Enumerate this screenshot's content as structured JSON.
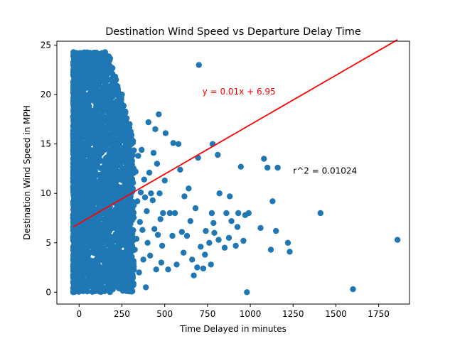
{
  "chart_data": {
    "type": "scatter",
    "title": "Destination Wind Speed vs Departure Delay Time",
    "xlabel": "Time Delayed in minutes",
    "ylabel": "Destination Wind Speed in MPH",
    "xlim": [
      -130,
      1930
    ],
    "ylim": [
      -1.2,
      25.4
    ],
    "x_ticks": [
      0,
      250,
      500,
      750,
      1000,
      1250,
      1500,
      1750
    ],
    "x_tick_labels": [
      "0",
      "250",
      "500",
      "750",
      "1000",
      "1250",
      "1500",
      "1750"
    ],
    "y_ticks": [
      0,
      5,
      10,
      15,
      20,
      25
    ],
    "y_tick_labels": [
      "0",
      "5",
      "10",
      "15",
      "20",
      "25"
    ],
    "grid": false,
    "colors": {
      "points": "#1f77b4",
      "regression": "#ff0000",
      "text": "#000000"
    },
    "regression": {
      "slope": 0.01,
      "intercept": 6.95,
      "x_range": [
        -35,
        1860
      ]
    },
    "annotations": {
      "equation": {
        "text": "y = 0.01x + 6.95",
        "x": 720,
        "y": 20,
        "color": "#ff0000"
      },
      "r_squared": {
        "text": "r^2 = 0.01024",
        "x": 1250,
        "y": 12
      }
    },
    "series": [
      {
        "points": [
          [
            1860,
            5.3
          ],
          [
            1600,
            0.3
          ],
          [
            1410,
            8.0
          ],
          [
            1230,
            4.1
          ],
          [
            1220,
            5.0
          ],
          [
            1160,
            12.6
          ],
          [
            1150,
            6.2
          ],
          [
            1130,
            9.2
          ],
          [
            1120,
            4.3
          ],
          [
            1100,
            12.6
          ],
          [
            1080,
            13.5
          ],
          [
            1060,
            6.5
          ],
          [
            990,
            8.0
          ],
          [
            980,
            0.0
          ],
          [
            970,
            7.8
          ],
          [
            960,
            5.2
          ],
          [
            945,
            12.7
          ],
          [
            930,
            8.0
          ],
          [
            925,
            6.6
          ],
          [
            915,
            4.7
          ],
          [
            890,
            7.2
          ],
          [
            880,
            9.7
          ],
          [
            875,
            5.5
          ],
          [
            860,
            8.0
          ],
          [
            850,
            4.5
          ],
          [
            820,
            10.0
          ],
          [
            815,
            5.3
          ],
          [
            810,
            13.9
          ],
          [
            790,
            6.0
          ],
          [
            785,
            7.0
          ],
          [
            780,
            15.0
          ],
          [
            775,
            8.0
          ],
          [
            770,
            2.8
          ],
          [
            760,
            5.0
          ],
          [
            740,
            6.2
          ],
          [
            735,
            3.8
          ],
          [
            725,
            2.4
          ],
          [
            710,
            4.6
          ],
          [
            700,
            23.0
          ],
          [
            695,
            13.6
          ],
          [
            690,
            2.5
          ],
          [
            680,
            8.5
          ],
          [
            670,
            1.7
          ],
          [
            660,
            3.3
          ],
          [
            650,
            7.2
          ],
          [
            640,
            10.5
          ],
          [
            630,
            5.7
          ],
          [
            615,
            9.7
          ],
          [
            610,
            4.0
          ],
          [
            600,
            6.1
          ],
          [
            590,
            12.4
          ],
          [
            580,
            15.0
          ],
          [
            570,
            2.8
          ],
          [
            560,
            8.0
          ],
          [
            550,
            15.1
          ],
          [
            545,
            5.7
          ],
          [
            530,
            8.0
          ],
          [
            520,
            2.3
          ],
          [
            505,
            16.1
          ],
          [
            500,
            11.3
          ],
          [
            490,
            8.0
          ],
          [
            485,
            4.7
          ],
          [
            480,
            3.0
          ],
          [
            475,
            7.4
          ],
          [
            470,
            10.0
          ],
          [
            465,
            18.0
          ],
          [
            460,
            5.8
          ],
          [
            455,
            13.0
          ],
          [
            450,
            2.3
          ],
          [
            445,
            16.5
          ],
          [
            440,
            6.4
          ],
          [
            435,
            14.1
          ],
          [
            430,
            9.3
          ],
          [
            420,
            10.0
          ],
          [
            415,
            3.7
          ],
          [
            410,
            12.1
          ],
          [
            405,
            17.2
          ],
          [
            400,
            5.0
          ],
          [
            395,
            8.2
          ],
          [
            390,
            0.5
          ],
          [
            385,
            9.6
          ],
          [
            380,
            11.4
          ],
          [
            375,
            3.3
          ],
          [
            370,
            6.3
          ],
          [
            365,
            14.4
          ],
          [
            360,
            10.1
          ],
          [
            355,
            7.1
          ],
          [
            350,
            2.0
          ],
          [
            345,
            13.8
          ],
          [
            340,
            9.2
          ],
          [
            335,
            5.4
          ],
          [
            330,
            12.2
          ],
          [
            325,
            4.3
          ],
          [
            320,
            8.8
          ],
          [
            315,
            15.3
          ],
          [
            310,
            1.3
          ],
          [
            305,
            11.5
          ],
          [
            300,
            6.9
          ],
          [
            295,
            17.0
          ],
          [
            290,
            3.6
          ],
          [
            285,
            9.9
          ],
          [
            280,
            13.1
          ],
          [
            275,
            0.6
          ],
          [
            270,
            18.3
          ],
          [
            265,
            7.6
          ],
          [
            260,
            16.0
          ],
          [
            255,
            4.8
          ],
          [
            250,
            20.0
          ],
          [
            245,
            10.6
          ],
          [
            240,
            2.7
          ],
          [
            235,
            14.9
          ],
          [
            230,
            8.3
          ],
          [
            225,
            17.7
          ],
          [
            220,
            5.9
          ],
          [
            215,
            12.8
          ],
          [
            210,
            1.0
          ],
          [
            205,
            18.6
          ],
          [
            200,
            9.4
          ],
          [
            195,
            3.9
          ],
          [
            190,
            15.8
          ],
          [
            185,
            7.3
          ],
          [
            180,
            22.9
          ],
          [
            175,
            11.9
          ],
          [
            170,
            0.2
          ],
          [
            165,
            19.6
          ],
          [
            160,
            6.2
          ],
          [
            155,
            13.5
          ],
          [
            150,
            2.1
          ],
          [
            145,
            20.6
          ],
          [
            140,
            10.4
          ],
          [
            135,
            24.2
          ],
          [
            130,
            4.6
          ],
          [
            125,
            16.9
          ],
          [
            120,
            8.6
          ],
          [
            115,
            22.4
          ],
          [
            110,
            1.6
          ],
          [
            105,
            14.3
          ],
          [
            100,
            18.9
          ],
          [
            95,
            7.9
          ],
          [
            90,
            12.3
          ],
          [
            85,
            0.9
          ],
          [
            80,
            20.3
          ],
          [
            75,
            5.2
          ],
          [
            70,
            15.6
          ],
          [
            65,
            23.0
          ],
          [
            60,
            9.8
          ],
          [
            55,
            3.3
          ],
          [
            50,
            17.4
          ],
          [
            45,
            11.1
          ],
          [
            40,
            21.2
          ],
          [
            35,
            6.7
          ],
          [
            30,
            24.2
          ],
          [
            25,
            13.4
          ],
          [
            20,
            2.9
          ],
          [
            15,
            19.1
          ],
          [
            10,
            8.1
          ],
          [
            5,
            22.1
          ],
          [
            0,
            4.4
          ],
          [
            -5,
            16.4
          ],
          [
            -10,
            10.9
          ],
          [
            -15,
            0.1
          ],
          [
            -20,
            14.0
          ],
          [
            -25,
            7.4
          ],
          [
            -30,
            3.5
          ],
          [
            -35,
            0.0
          ]
        ],
        "dense_region": {
          "x": [
            -35,
            320
          ],
          "y": [
            0,
            24.3
          ],
          "count": 3000
        }
      }
    ]
  }
}
